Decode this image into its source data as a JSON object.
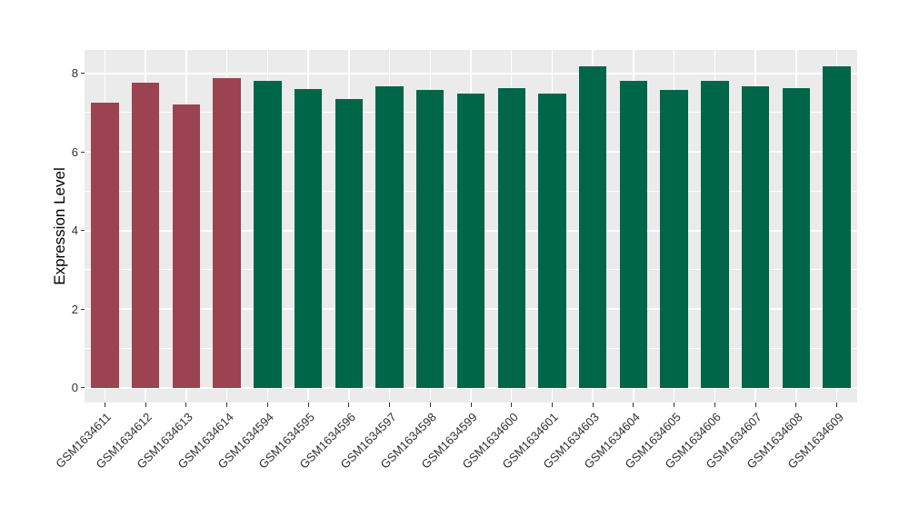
{
  "chart_data": {
    "type": "bar",
    "title": "",
    "xlabel": "",
    "ylabel": "Expression Level",
    "categories": [
      "GSM1634611",
      "GSM1634612",
      "GSM1634613",
      "GSM1634614",
      "GSM1634594",
      "GSM1634595",
      "GSM1634596",
      "GSM1634597",
      "GSM1634598",
      "GSM1634599",
      "GSM1634600",
      "GSM1634601",
      "GSM1634603",
      "GSM1634604",
      "GSM1634605",
      "GSM1634606",
      "GSM1634607",
      "GSM1634608",
      "GSM1634609"
    ],
    "values": [
      7.25,
      7.75,
      7.2,
      7.88,
      7.81,
      7.6,
      7.35,
      7.66,
      7.58,
      7.47,
      7.63,
      7.49,
      8.17,
      7.81,
      7.58,
      7.81,
      7.66,
      7.63,
      8.17
    ],
    "bar_colors": [
      "#9B4351",
      "#9B4351",
      "#9B4351",
      "#9B4351",
      "#006648",
      "#006648",
      "#006648",
      "#006648",
      "#006648",
      "#006648",
      "#006648",
      "#006648",
      "#006648",
      "#006648",
      "#006648",
      "#006648",
      "#006648",
      "#006648",
      "#006648"
    ],
    "ylim": [
      -0.38,
      8.59
    ],
    "yticks_major": [
      0,
      2,
      4,
      6,
      8
    ],
    "yticks_minor": [
      1,
      3,
      5,
      7
    ],
    "ytick_labels": [
      "0",
      "2",
      "4",
      "6",
      "8"
    ],
    "grid": "on",
    "legend": "none",
    "bar_width_fraction": 0.68,
    "colors": {
      "panel_bg": "#EBEBEB",
      "grid": "#FFFFFF",
      "tick_mark": "#333333",
      "axis_text": "#303030",
      "axis_title": "#000000"
    }
  }
}
